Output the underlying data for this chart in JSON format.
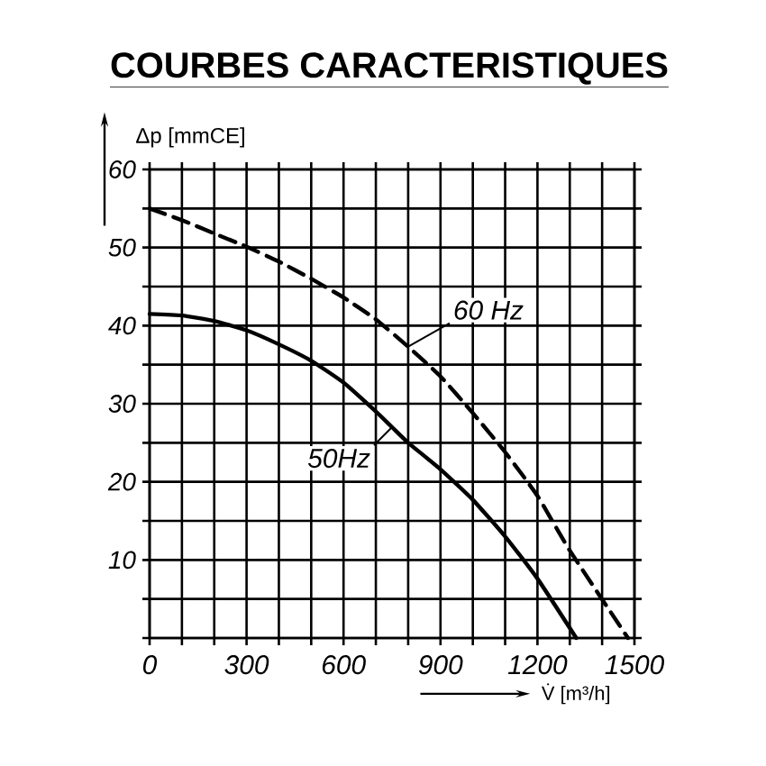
{
  "chart_data": {
    "type": "line",
    "title": "COURBES CARACTERISTIQUES",
    "xlabel": "V̇ [m³/h]",
    "ylabel": "Δp [mmCE]",
    "xlim": [
      0,
      1500
    ],
    "ylim": [
      0,
      60
    ],
    "xticks": [
      0,
      {
        "value": 100,
        "label": null
      },
      {
        "value": 200,
        "label": null
      },
      300,
      {
        "value": 400,
        "label": null
      },
      {
        "value": 500,
        "label": null
      },
      600,
      {
        "value": 700,
        "label": null
      },
      {
        "value": 800,
        "label": null
      },
      900,
      {
        "value": 1000,
        "label": null
      },
      {
        "value": 1100,
        "label": null
      },
      1200,
      {
        "value": 1300,
        "label": null
      },
      {
        "value": 1400,
        "label": null
      },
      1500
    ],
    "yticks": [
      {
        "value": 0,
        "label": null
      },
      {
        "value": 5,
        "label": null
      },
      10,
      {
        "value": 15,
        "label": null
      },
      20,
      {
        "value": 25,
        "label": null
      },
      30,
      {
        "value": 35,
        "label": null
      },
      40,
      {
        "value": 45,
        "label": null
      },
      50,
      {
        "value": 55,
        "label": null
      },
      60
    ],
    "grid": true,
    "series": [
      {
        "name": "50Hz",
        "color": "#000000",
        "line_style": "solid",
        "x": [
          0,
          100,
          200,
          300,
          400,
          500,
          600,
          700,
          750,
          800,
          900,
          1000,
          1100,
          1200,
          1320
        ],
        "values": [
          41.5,
          41.3,
          40.6,
          39.4,
          37.6,
          35.5,
          32.7,
          29,
          27,
          25,
          21.6,
          17.7,
          13,
          7.6,
          0
        ]
      },
      {
        "name": "60 Hz",
        "color": "#000000",
        "line_style": "dashed",
        "x": [
          0,
          100,
          200,
          300,
          400,
          500,
          600,
          700,
          800,
          900,
          1000,
          1100,
          1200,
          1300,
          1480
        ],
        "values": [
          55,
          53.5,
          51.8,
          50.1,
          48.2,
          46,
          43.6,
          40.8,
          37.3,
          33.5,
          28.8,
          23.8,
          18.2,
          11.2,
          0
        ]
      }
    ]
  }
}
